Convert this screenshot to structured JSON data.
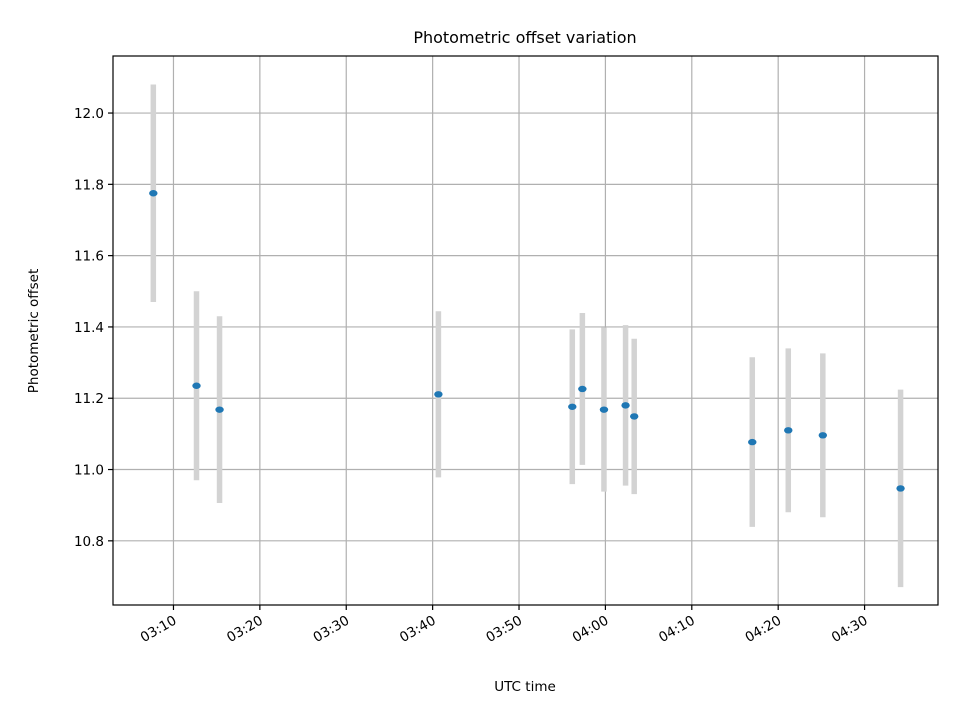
{
  "chart_data": {
    "type": "scatter",
    "title": "Photometric offset variation",
    "xlabel": "UTC time",
    "ylabel": "Photometric offset",
    "x_ticks": [
      "03:10",
      "03:20",
      "03:30",
      "03:40",
      "03:50",
      "04:00",
      "04:10",
      "04:20",
      "04:30"
    ],
    "y_ticks": [
      "10.8",
      "11.0",
      "11.2",
      "11.4",
      "11.6",
      "11.8",
      "12.0"
    ],
    "ylim": [
      10.62,
      12.16
    ],
    "xlim": [
      "03:03:00",
      "04:38:30"
    ],
    "grid": true,
    "marker_color": "#1f77b4",
    "errorbar_color": "#d3d3d3",
    "points": [
      {
        "t": "03:07:40",
        "y": 11.775,
        "err": 0.305
      },
      {
        "t": "03:12:40",
        "y": 11.235,
        "err": 0.265
      },
      {
        "t": "03:15:20",
        "y": 11.168,
        "err": 0.262
      },
      {
        "t": "03:40:40",
        "y": 11.211,
        "err": 0.233
      },
      {
        "t": "03:56:10",
        "y": 11.176,
        "err": 0.217
      },
      {
        "t": "03:57:20",
        "y": 11.226,
        "err": 0.213
      },
      {
        "t": "03:59:50",
        "y": 11.168,
        "err": 0.23
      },
      {
        "t": "04:02:20",
        "y": 11.18,
        "err": 0.225
      },
      {
        "t": "04:03:20",
        "y": 11.149,
        "err": 0.218
      },
      {
        "t": "04:17:00",
        "y": 11.077,
        "err": 0.238
      },
      {
        "t": "04:21:10",
        "y": 11.11,
        "err": 0.23
      },
      {
        "t": "04:25:10",
        "y": 11.096,
        "err": 0.23
      },
      {
        "t": "04:34:10",
        "y": 10.947,
        "err": 0.277
      }
    ]
  }
}
